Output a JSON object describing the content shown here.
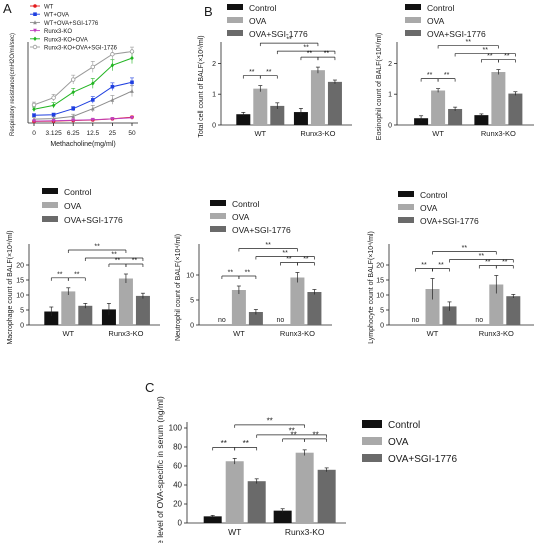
{
  "panel_letters": [
    "A",
    "B",
    "C"
  ],
  "colors": {
    "control": "#111111",
    "ova": "#a9a9a9",
    "ova_sgi": "#6a6a6a",
    "axis": "#222222",
    "line_WT": "#e31a1c",
    "line_WT_OVA": "#1f3fe0",
    "line_WT_OVA_SGI": "#8c8c8c",
    "line_Runx3KO": "#c040c0",
    "line_Runx3KO_OVA": "#22b522",
    "line_Runx3KO_OVA_SGI": "#9a9a9a"
  },
  "chart_data": [
    {
      "id": "A",
      "type": "line",
      "xlabel": "Methacholine(mg/ml)",
      "ylabel": "Respiratory resistance(cmH2O/ml/sec)",
      "x": [
        "0",
        "3.125",
        "6.25",
        "12.5",
        "25",
        "50"
      ],
      "ylim": [
        0,
        14
      ],
      "series": [
        {
          "name": "WT",
          "marker": "circle",
          "values": [
            0.3,
            0.35,
            0.45,
            0.55,
            0.75,
            1.05
          ],
          "err": [
            0.1,
            0.1,
            0.1,
            0.15,
            0.15,
            0.2
          ]
        },
        {
          "name": "WT+OVA",
          "marker": "square",
          "values": [
            1.4,
            1.5,
            2.6,
            4.2,
            6.6,
            7.4
          ],
          "err": [
            0.3,
            0.3,
            0.4,
            0.6,
            0.7,
            0.8
          ]
        },
        {
          "name": "WT+OVA+SGI-1776",
          "marker": "triangle",
          "values": [
            0.7,
            0.8,
            1.2,
            2.6,
            4.2,
            5.8
          ],
          "err": [
            0.3,
            0.3,
            0.4,
            0.6,
            0.8,
            1.0
          ]
        },
        {
          "name": "Runx3-KO",
          "marker": "triangle-down",
          "values": [
            0.35,
            0.4,
            0.5,
            0.6,
            0.75,
            0.95
          ],
          "err": [
            0.1,
            0.1,
            0.1,
            0.15,
            0.15,
            0.2
          ]
        },
        {
          "name": "Runx3-KO+OVA",
          "marker": "diamond",
          "values": [
            2.5,
            3.2,
            5.6,
            7.2,
            10.5,
            11.8
          ],
          "err": [
            0.4,
            0.5,
            0.7,
            0.9,
            1.0,
            1.0
          ]
        },
        {
          "name": "Runx3-KO+OVA+SGI-1776",
          "marker": "circle-open",
          "values": [
            3.3,
            4.6,
            7.9,
            10.2,
            12.5,
            13.0
          ],
          "err": [
            0.5,
            0.6,
            0.8,
            1.0,
            1.0,
            0.8
          ]
        }
      ]
    },
    {
      "id": "B1",
      "type": "bar",
      "ylabel": "Total cell count of BALF(×10⁶/ml)",
      "categories": [
        "WT",
        "Runx3-KO"
      ],
      "ylim": [
        0,
        2.5
      ],
      "yticks": [
        "0",
        "1",
        "2"
      ],
      "series": [
        {
          "name": "Control",
          "values": [
            0.35,
            0.42
          ],
          "err": [
            0.06,
            0.12
          ]
        },
        {
          "name": "OVA",
          "values": [
            1.18,
            1.78
          ],
          "err": [
            0.1,
            0.1
          ]
        },
        {
          "name": "OVA+SGI-1776",
          "values": [
            0.62,
            1.4
          ],
          "err": [
            0.1,
            0.06
          ]
        }
      ],
      "significance": "**"
    },
    {
      "id": "B2",
      "type": "bar",
      "ylabel": "Eosinophil count of BALF(×10⁶/ml)",
      "categories": [
        "WT",
        "Runx3-KO"
      ],
      "ylim": [
        0,
        2.5
      ],
      "yticks": [
        "0",
        "1",
        "2"
      ],
      "series": [
        {
          "name": "Control",
          "values": [
            0.22,
            0.32
          ],
          "err": [
            0.08,
            0.04
          ]
        },
        {
          "name": "OVA",
          "values": [
            1.12,
            1.72
          ],
          "err": [
            0.06,
            0.08
          ]
        },
        {
          "name": "OVA+SGI-1776",
          "values": [
            0.52,
            1.02
          ],
          "err": [
            0.06,
            0.06
          ]
        }
      ],
      "significance": "**"
    },
    {
      "id": "B3",
      "type": "bar",
      "ylabel": "Macrophage count of BALF(×10⁴/ml)",
      "categories": [
        "WT",
        "Runx3-KO"
      ],
      "ylim": [
        0,
        25
      ],
      "yticks": [
        "0",
        "5",
        "10",
        "15",
        "20"
      ],
      "series": [
        {
          "name": "Control",
          "values": [
            4.5,
            5.2
          ],
          "err": [
            1.5,
            2.0
          ]
        },
        {
          "name": "OVA",
          "values": [
            11.2,
            15.5
          ],
          "err": [
            1.2,
            1.5
          ]
        },
        {
          "name": "OVA+SGI-1776",
          "values": [
            6.4,
            9.7
          ],
          "err": [
            0.8,
            0.9
          ]
        }
      ],
      "significance": "**"
    },
    {
      "id": "B4",
      "type": "bar",
      "ylabel": "Neutrophil count of BALF(×10⁴/ml)",
      "categories": [
        "WT",
        "Runx3-KO"
      ],
      "ylim": [
        0,
        15
      ],
      "yticks": [
        "0",
        "5",
        "10"
      ],
      "series": [
        {
          "name": "Control",
          "values": [
            0,
            0
          ],
          "err": [
            0,
            0
          ],
          "labels": [
            "no",
            "no"
          ]
        },
        {
          "name": "OVA",
          "values": [
            7.0,
            9.5
          ],
          "err": [
            0.8,
            1.0
          ]
        },
        {
          "name": "OVA+SGI-1776",
          "values": [
            2.6,
            6.6
          ],
          "err": [
            0.5,
            0.5
          ]
        }
      ],
      "significance": "**"
    },
    {
      "id": "B5",
      "type": "bar",
      "ylabel": "Lymphocyte count of BALF(×10⁴/ml)",
      "categories": [
        "WT",
        "Runx3-KO"
      ],
      "ylim": [
        0,
        25
      ],
      "yticks": [
        "0",
        "5",
        "10",
        "15",
        "20"
      ],
      "series": [
        {
          "name": "Control",
          "values": [
            0,
            0
          ],
          "err": [
            0,
            0
          ],
          "labels": [
            "no",
            "no"
          ]
        },
        {
          "name": "OVA",
          "values": [
            12.0,
            13.5
          ],
          "err": [
            3.5,
            3.0
          ]
        },
        {
          "name": "OVA+SGI-1776",
          "values": [
            6.2,
            9.6
          ],
          "err": [
            1.5,
            0.6
          ]
        }
      ],
      "significance": "**"
    },
    {
      "id": "C",
      "type": "bar",
      "ylabel": "The level of OVA-specific in serum (ng/ml)",
      "categories": [
        "WT",
        "Runx3-KO"
      ],
      "ylim": [
        0,
        100
      ],
      "yticks": [
        "0",
        "20",
        "40",
        "60",
        "80",
        "100"
      ],
      "series": [
        {
          "name": "Control",
          "values": [
            7,
            13
          ],
          "err": [
            1.0,
            2.0
          ]
        },
        {
          "name": "OVA",
          "values": [
            65,
            74
          ],
          "err": [
            3.0,
            3.0
          ]
        },
        {
          "name": "OVA+SGI-1776",
          "values": [
            44,
            56
          ],
          "err": [
            2.5,
            2.0
          ]
        }
      ],
      "significance": "**"
    }
  ]
}
